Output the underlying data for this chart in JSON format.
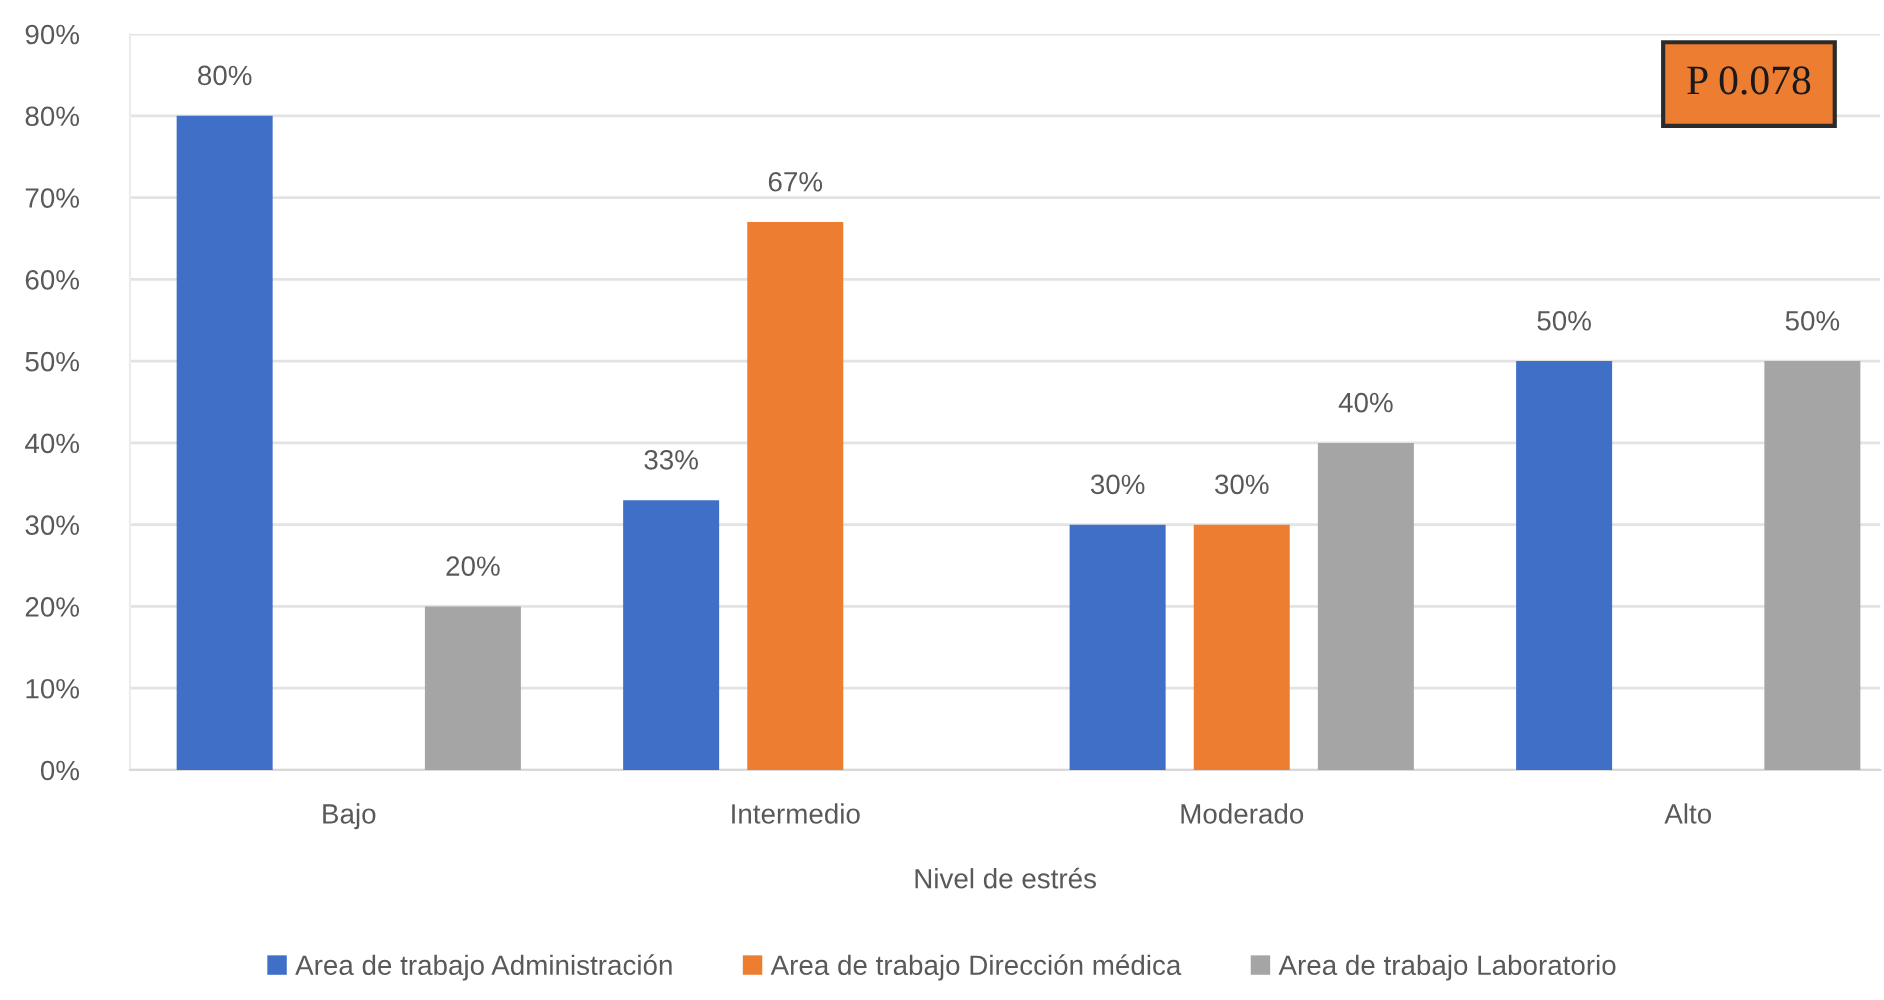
{
  "chart_data": {
    "type": "bar",
    "xlabel": "Nivel de estrés",
    "categories": [
      "Bajo",
      "Intermedio",
      "Moderado",
      "Alto"
    ],
    "series": [
      {
        "name": "Area de trabajo Administración",
        "color": "#3f6fc6",
        "values": [
          80,
          33,
          30,
          50
        ],
        "value_labels": [
          "80%",
          "33%",
          "30%",
          "50%"
        ]
      },
      {
        "name": "Area de trabajo Dirección médica",
        "color": "#ed7d31",
        "values": [
          null,
          67,
          30,
          null
        ],
        "value_labels": [
          null,
          "67%",
          "30%",
          null
        ]
      },
      {
        "name": "Area de trabajo Laboratorio",
        "color": "#a5a5a5",
        "values": [
          20,
          null,
          40,
          50
        ],
        "value_labels": [
          "20%",
          null,
          "40%",
          "50%"
        ]
      }
    ],
    "ylim": [
      0,
      90
    ],
    "yticks": [
      {
        "value": 0,
        "label": "0%"
      },
      {
        "value": 10,
        "label": "10%"
      },
      {
        "value": 20,
        "label": "20%"
      },
      {
        "value": 30,
        "label": "30%"
      },
      {
        "value": 40,
        "label": "40%"
      },
      {
        "value": 50,
        "label": "50%"
      },
      {
        "value": 60,
        "label": "60%"
      },
      {
        "value": 70,
        "label": "70%"
      },
      {
        "value": 80,
        "label": "80%"
      },
      {
        "value": 90,
        "label": "90%"
      }
    ],
    "grid": "y",
    "legend": "bottom",
    "annotations": [
      "P 0.078"
    ]
  }
}
